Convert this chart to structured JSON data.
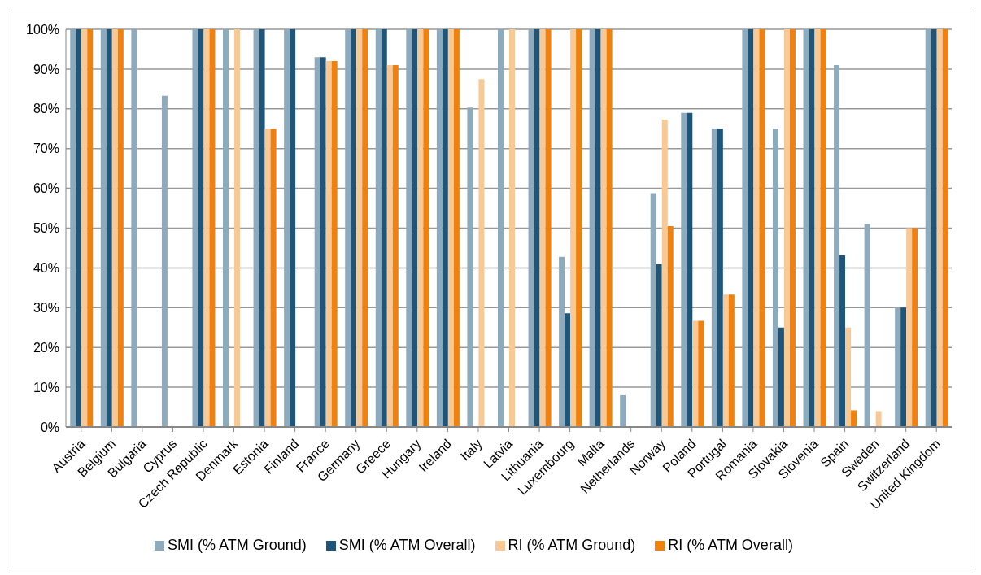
{
  "chart_data": {
    "type": "bar",
    "categories": [
      "Austria",
      "Belgium",
      "Bulgaria",
      "Cyprus",
      "Czech Republic",
      "Denmark",
      "Estonia",
      "Finland",
      "France",
      "Germany",
      "Greece",
      "Hungary",
      "Ireland",
      "Italy",
      "Latvia",
      "Lithuania",
      "Luxembourg",
      "Malta",
      "Netherlands",
      "Norway",
      "Poland",
      "Portugal",
      "Romania",
      "Slovakia",
      "Slovenia",
      "Spain",
      "Sweden",
      "Switzerland",
      "United Kingdom"
    ],
    "series": [
      {
        "name": "SMI (% ATM Ground)",
        "color": "#8eaabd",
        "values": [
          100,
          100,
          100,
          83.3,
          100,
          100,
          100,
          100,
          93,
          100,
          100,
          100,
          100,
          80.3,
          100,
          100,
          42.8,
          100,
          8,
          58.8,
          79,
          75,
          100,
          75,
          100,
          91,
          51,
          30,
          100
        ]
      },
      {
        "name": "SMI (% ATM Overall)",
        "color": "#1f5579",
        "values": [
          100,
          100,
          null,
          null,
          100,
          null,
          100,
          100,
          93,
          100,
          100,
          100,
          100,
          null,
          null,
          100,
          28.6,
          100,
          null,
          41,
          79,
          75,
          100,
          25,
          100,
          43.2,
          null,
          30,
          100
        ]
      },
      {
        "name": "RI (% ATM Ground)",
        "color": "#f9c995",
        "values": [
          100,
          100,
          null,
          null,
          100,
          100,
          75,
          null,
          92,
          100,
          91,
          100,
          100,
          87.5,
          100,
          100,
          100,
          100,
          null,
          77.3,
          26.7,
          33.3,
          100,
          100,
          100,
          25,
          4,
          50,
          100
        ]
      },
      {
        "name": "RI (% ATM Overall)",
        "color": "#f0810f",
        "values": [
          100,
          100,
          null,
          null,
          100,
          null,
          75,
          null,
          92,
          100,
          91,
          100,
          100,
          null,
          null,
          100,
          100,
          100,
          null,
          50.5,
          26.7,
          33.3,
          100,
          100,
          100,
          4.2,
          null,
          50,
          100
        ]
      }
    ],
    "ylim": [
      0,
      100
    ],
    "yticks": [
      {
        "value": 0,
        "label": "0%"
      },
      {
        "value": 10,
        "label": "10%"
      },
      {
        "value": 20,
        "label": "20%"
      },
      {
        "value": 30,
        "label": "30%"
      },
      {
        "value": 40,
        "label": "40%"
      },
      {
        "value": 50,
        "label": "50%"
      },
      {
        "value": 60,
        "label": "60%"
      },
      {
        "value": 70,
        "label": "70%"
      },
      {
        "value": 80,
        "label": "80%"
      },
      {
        "value": 90,
        "label": "90%"
      },
      {
        "value": 100,
        "label": "100%"
      }
    ],
    "grid": "y",
    "legend": "bottom"
  }
}
